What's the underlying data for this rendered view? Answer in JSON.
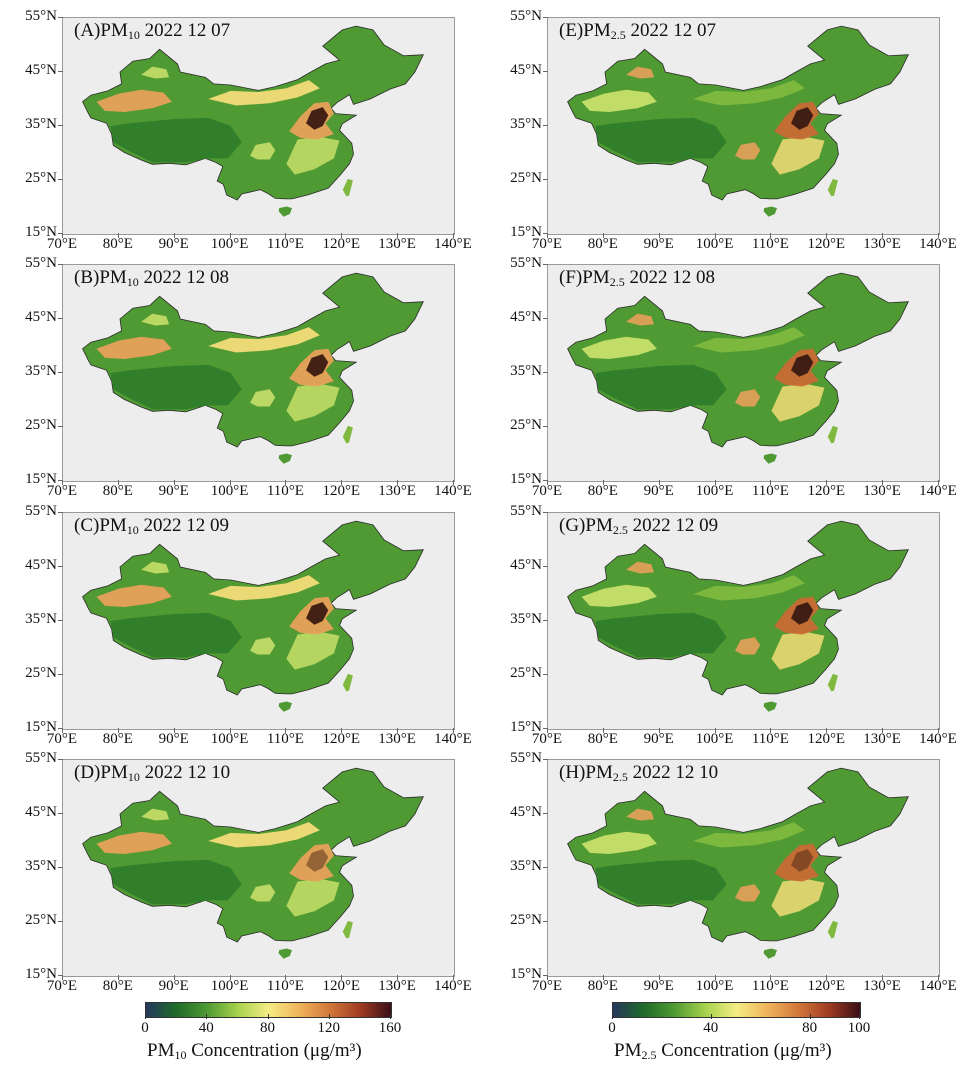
{
  "panels": [
    {
      "id": "A",
      "prefix": "(A)PM",
      "sub": "10",
      "date": " 2022 12 07",
      "pollutant": "PM10",
      "col": 0,
      "row": 0
    },
    {
      "id": "B",
      "prefix": "(B)PM",
      "sub": "10",
      "date": " 2022 12 08",
      "pollutant": "PM10",
      "col": 0,
      "row": 1
    },
    {
      "id": "C",
      "prefix": "(C)PM",
      "sub": "10",
      "date": " 2022 12 09",
      "pollutant": "PM10",
      "col": 0,
      "row": 2
    },
    {
      "id": "D",
      "prefix": "(D)PM",
      "sub": "10",
      "date": " 2022 12 10",
      "pollutant": "PM10",
      "col": 0,
      "row": 3
    },
    {
      "id": "E",
      "prefix": "(E)PM",
      "sub": "2.5",
      "date": " 2022 12 07",
      "pollutant": "PM2.5",
      "col": 1,
      "row": 0
    },
    {
      "id": "F",
      "prefix": "(F)PM",
      "sub": "2.5",
      "date": " 2022 12 08",
      "pollutant": "PM2.5",
      "col": 1,
      "row": 1
    },
    {
      "id": "G",
      "prefix": "(G)PM",
      "sub": "2.5",
      "date": " 2022 12 09",
      "pollutant": "PM2.5",
      "col": 1,
      "row": 2
    },
    {
      "id": "H",
      "prefix": "(H)PM",
      "sub": "2.5",
      "date": " 2022 12 10",
      "pollutant": "PM2.5",
      "col": 1,
      "row": 3
    }
  ],
  "axes": {
    "lat_ticks": [
      "55°N",
      "45°N",
      "35°N",
      "25°N",
      "15°N"
    ],
    "lat_values": [
      55,
      45,
      35,
      25,
      15
    ],
    "lon_ticks": [
      "70°E",
      "80°E",
      "90°E",
      "100°E",
      "110°E",
      "120°E",
      "130°E",
      "140°E"
    ],
    "lon_values": [
      70,
      80,
      90,
      100,
      110,
      120,
      130,
      140
    ],
    "lat_range": [
      15,
      55
    ],
    "lon_range": [
      70,
      140
    ]
  },
  "map_colors": {
    "background": "#ededed",
    "tibet_low": "#2f7d2a",
    "south_green": "#4f9a33",
    "mid_green": "#7fb93f",
    "yellow_green": "#c7df6a",
    "yellow": "#f2dc78",
    "orange": "#e7a05a",
    "dark_orange": "#c86a35",
    "hotspot": "#3a1a12"
  },
  "colorbars": [
    {
      "id": "pm10",
      "ticks": [
        "0",
        "40",
        "80",
        "120",
        "160"
      ],
      "tick_values": [
        0,
        40,
        80,
        120,
        160
      ],
      "range": [
        0,
        160
      ],
      "label_prefix": "PM",
      "label_sub": "10",
      "label_suffix": " Concentration (μg/m³)",
      "stops": [
        "#26375c",
        "#1f6b2a",
        "#4f9a33",
        "#a8d24e",
        "#f4ec84",
        "#f0b45c",
        "#d2773a",
        "#9e3a22",
        "#3a0f16"
      ]
    },
    {
      "id": "pm25",
      "ticks": [
        "0",
        "40",
        "80",
        "100"
      ],
      "tick_values": [
        0,
        40,
        80,
        100
      ],
      "range": [
        0,
        100
      ],
      "label_prefix": "PM",
      "label_sub": "2.5",
      "label_suffix": " Concentration (μg/m³)",
      "stops": [
        "#26375c",
        "#1f6b2a",
        "#4f9a33",
        "#a8d24e",
        "#f4ec84",
        "#f0b45c",
        "#d2773a",
        "#9e3a22",
        "#3a0f16"
      ]
    }
  ]
}
